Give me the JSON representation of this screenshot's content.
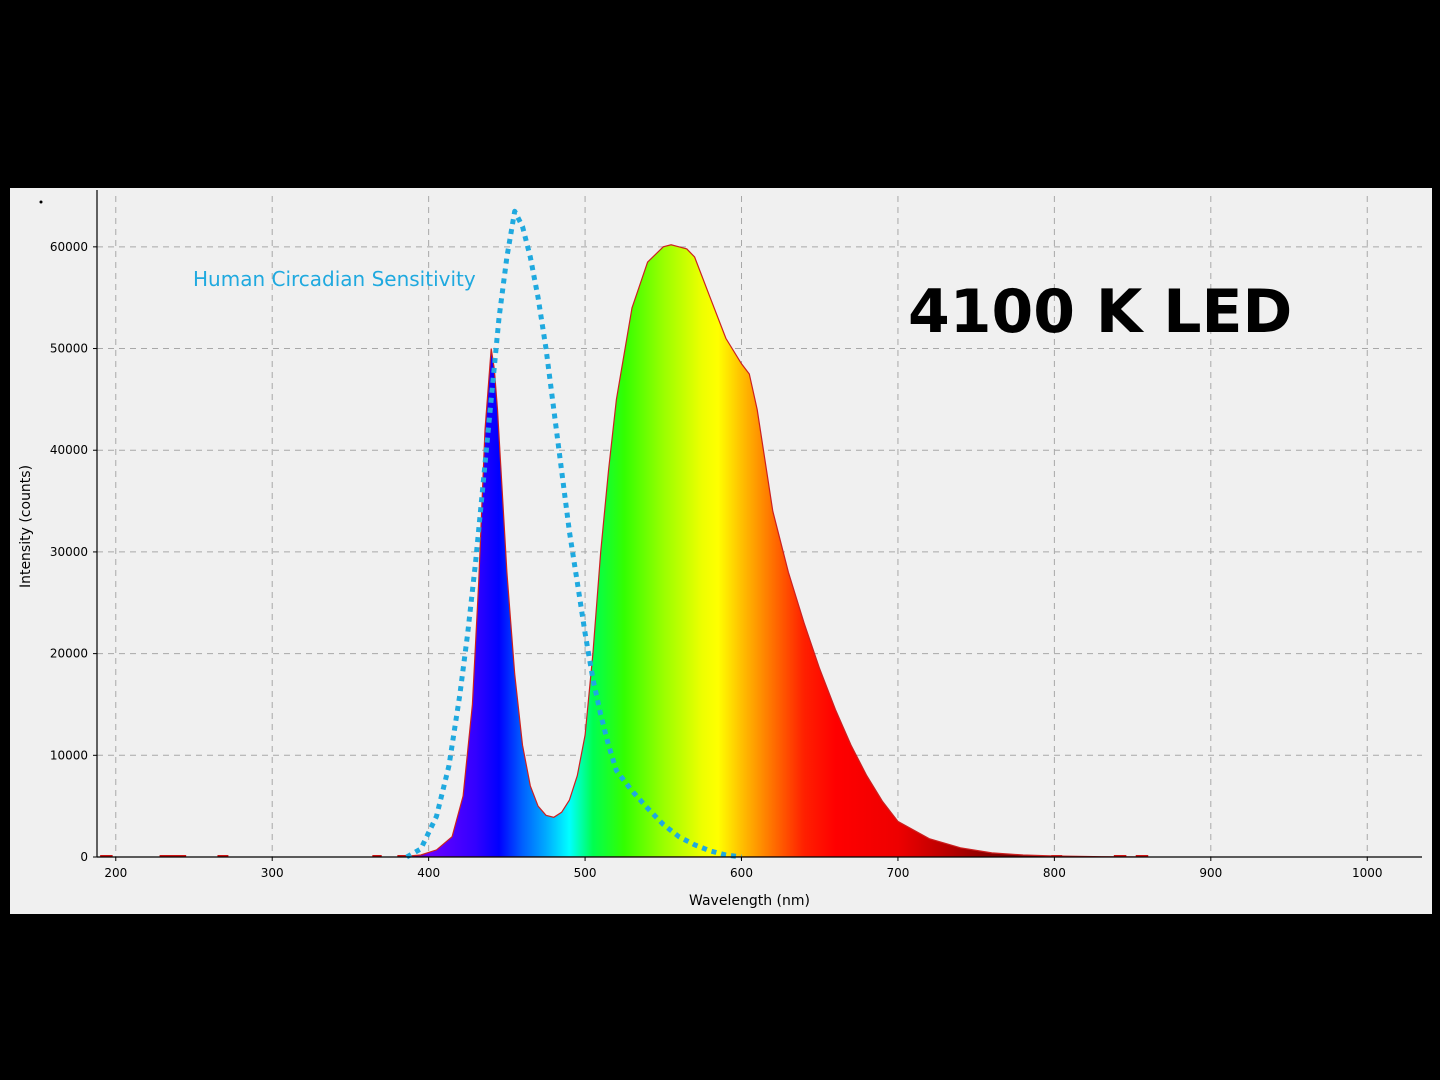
{
  "chart_data": {
    "type": "area",
    "title": "4100 K LED",
    "xlabel": "Wavelength (nm)",
    "ylabel": "Intensity (counts)",
    "xlim": [
      188,
      1035
    ],
    "ylim": [
      0,
      65000
    ],
    "x_ticks": [
      200,
      300,
      400,
      500,
      600,
      700,
      800,
      900,
      1000
    ],
    "y_ticks": [
      0,
      10000,
      20000,
      30000,
      40000,
      50000,
      60000
    ],
    "grid": true,
    "annotations": [
      {
        "text": "Human Circadian Sensitivity",
        "color": "#1fa9df"
      }
    ],
    "series": [
      {
        "name": "4100 K LED",
        "fill": "visible-spectrum",
        "x": [
          380,
          395,
          405,
          415,
          422,
          428,
          432,
          436,
          440,
          442,
          444,
          447,
          450,
          455,
          460,
          465,
          470,
          475,
          480,
          485,
          490,
          495,
          500,
          505,
          510,
          515,
          520,
          530,
          540,
          550,
          555,
          560,
          565,
          570,
          580,
          590,
          600,
          605,
          610,
          615,
          620,
          630,
          640,
          650,
          660,
          670,
          680,
          690,
          700,
          720,
          740,
          760,
          780,
          800,
          830,
          860
        ],
        "y": [
          0,
          200,
          700,
          2000,
          6000,
          15000,
          27000,
          42000,
          50000,
          48000,
          44000,
          36000,
          28000,
          18000,
          11000,
          7000,
          5000,
          4100,
          3900,
          4400,
          5600,
          8000,
          12000,
          20000,
          30000,
          38000,
          45000,
          54000,
          58500,
          60000,
          60200,
          60000,
          59800,
          59000,
          55000,
          51000,
          48500,
          47500,
          44000,
          39000,
          34000,
          28000,
          23000,
          18500,
          14500,
          11000,
          8000,
          5500,
          3500,
          1800,
          900,
          400,
          200,
          100,
          30,
          0
        ]
      },
      {
        "name": "Human Circadian Sensitivity",
        "style": "dotted",
        "color": "#1fa9df",
        "x": [
          386,
          395,
          405,
          413,
          420,
          425,
          430,
          435,
          440,
          445,
          450,
          455,
          460,
          465,
          470,
          475,
          480,
          485,
          490,
          495,
          500,
          505,
          510,
          515,
          520,
          530,
          540,
          550,
          560,
          570,
          580,
          590,
          600
        ],
        "y": [
          0,
          800,
          4000,
          9000,
          16000,
          22000,
          29000,
          37000,
          45000,
          53000,
          59000,
          63500,
          62000,
          59000,
          55000,
          50000,
          44000,
          38000,
          32000,
          27000,
          22000,
          17500,
          14000,
          11000,
          8500,
          6500,
          4800,
          3200,
          2000,
          1200,
          600,
          200,
          0
        ]
      }
    ],
    "noise_segments": [
      {
        "x": [
          190,
          198
        ]
      },
      {
        "x": [
          228,
          245
        ]
      },
      {
        "x": [
          265,
          272
        ]
      },
      {
        "x": [
          364,
          370
        ]
      },
      {
        "x": [
          380,
          388
        ]
      },
      {
        "x": [
          798,
          805
        ]
      },
      {
        "x": [
          838,
          846
        ]
      },
      {
        "x": [
          852,
          860
        ]
      }
    ]
  }
}
